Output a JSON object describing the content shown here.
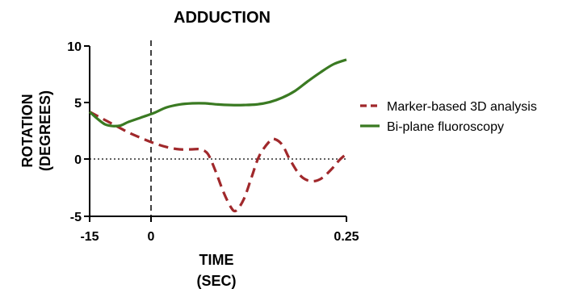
{
  "chart_data": {
    "type": "line",
    "title": "ADDUCTION",
    "xlabel_line1": "TIME",
    "xlabel_line2": "(SEC)",
    "ylabel_line1": "ROTATION",
    "ylabel_line2": "(DEGREES)",
    "x_tick_labels": [
      "-15",
      "0",
      "0.25"
    ],
    "y_tick_labels": [
      "10",
      "5",
      "0",
      "-5"
    ],
    "ylim": [
      -5,
      10
    ],
    "legend_position": "right",
    "reference_lines": {
      "vertical_dashed_at_tick": "0",
      "horizontal_dotted_at_y": 0
    },
    "series": [
      {
        "name": "Marker-based 3D analysis",
        "color": "#a0282b",
        "style": "dashed",
        "points": [
          [
            0.0,
            4.2
          ],
          [
            0.05,
            3.6
          ],
          [
            0.1,
            3.0
          ],
          [
            0.15,
            2.4
          ],
          [
            0.2,
            1.9
          ],
          [
            0.25,
            1.45
          ],
          [
            0.3,
            1.1
          ],
          [
            0.35,
            0.9
          ],
          [
            0.4,
            0.9
          ],
          [
            0.43,
            0.9
          ],
          [
            0.46,
            0.5
          ],
          [
            0.49,
            -1.0
          ],
          [
            0.52,
            -2.8
          ],
          [
            0.55,
            -4.2
          ],
          [
            0.57,
            -4.5
          ],
          [
            0.6,
            -3.5
          ],
          [
            0.63,
            -1.6
          ],
          [
            0.66,
            0.3
          ],
          [
            0.7,
            1.6
          ],
          [
            0.72,
            1.8
          ],
          [
            0.75,
            1.3
          ],
          [
            0.78,
            0.0
          ],
          [
            0.82,
            -1.4
          ],
          [
            0.86,
            -1.9
          ],
          [
            0.9,
            -1.7
          ],
          [
            0.94,
            -0.9
          ],
          [
            0.97,
            -0.1
          ],
          [
            1.0,
            0.5
          ]
        ]
      },
      {
        "name": "Bi-plane fluoroscopy",
        "color": "#3a7a22",
        "style": "solid",
        "points": [
          [
            0.0,
            4.2
          ],
          [
            0.03,
            3.6
          ],
          [
            0.06,
            3.1
          ],
          [
            0.09,
            2.95
          ],
          [
            0.12,
            3.0
          ],
          [
            0.15,
            3.3
          ],
          [
            0.2,
            3.7
          ],
          [
            0.25,
            4.1
          ],
          [
            0.3,
            4.6
          ],
          [
            0.35,
            4.85
          ],
          [
            0.4,
            4.95
          ],
          [
            0.45,
            4.95
          ],
          [
            0.5,
            4.85
          ],
          [
            0.55,
            4.8
          ],
          [
            0.6,
            4.8
          ],
          [
            0.65,
            4.85
          ],
          [
            0.7,
            5.05
          ],
          [
            0.75,
            5.45
          ],
          [
            0.8,
            6.05
          ],
          [
            0.85,
            6.9
          ],
          [
            0.9,
            7.7
          ],
          [
            0.95,
            8.4
          ],
          [
            1.0,
            8.8
          ]
        ]
      }
    ]
  }
}
